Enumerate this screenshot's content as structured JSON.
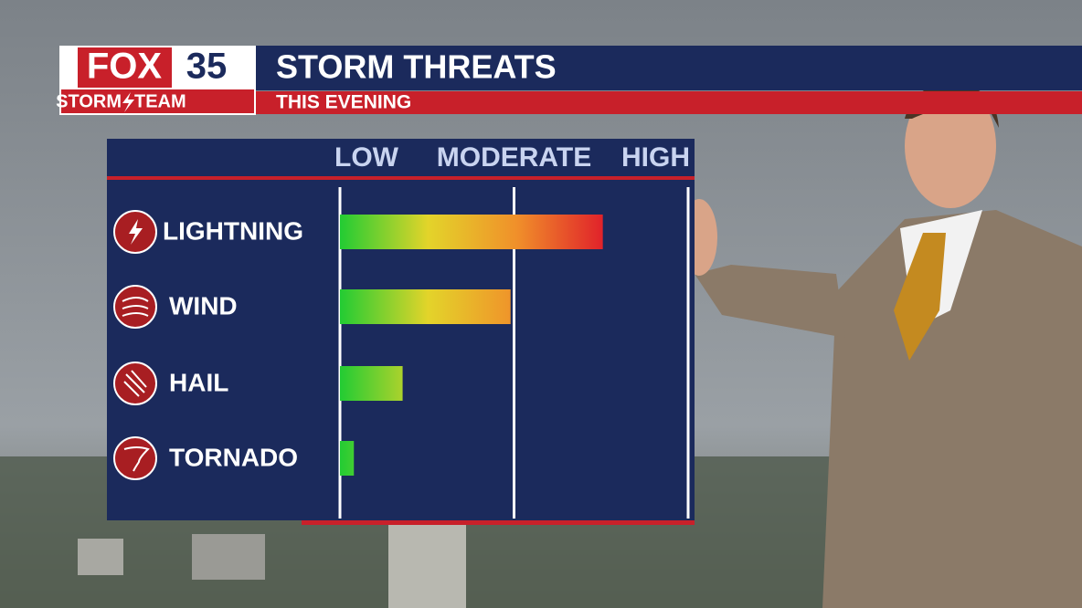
{
  "header": {
    "brand": "FOX",
    "channel": "35",
    "team_left": "STORM",
    "team_right": "TEAM"
  },
  "chart_data": {
    "type": "barh",
    "title": "STORM THREATS",
    "subtitle": "THIS EVENING",
    "categories": [
      "LIGHTNING",
      "WIND",
      "HAIL",
      "TORNADO"
    ],
    "values": [
      1.51,
      0.98,
      0.36,
      0.08
    ],
    "colors": [
      "#22cc33",
      "#e3d42a",
      "#f0902a",
      "#e0202a"
    ],
    "xlim": [
      0,
      2
    ],
    "xticks": [
      {
        "value": 0,
        "label": "LOW"
      },
      {
        "value": 1,
        "label": "MODERATE"
      },
      {
        "value": 2,
        "label": "HIGH"
      }
    ],
    "grid": true
  }
}
